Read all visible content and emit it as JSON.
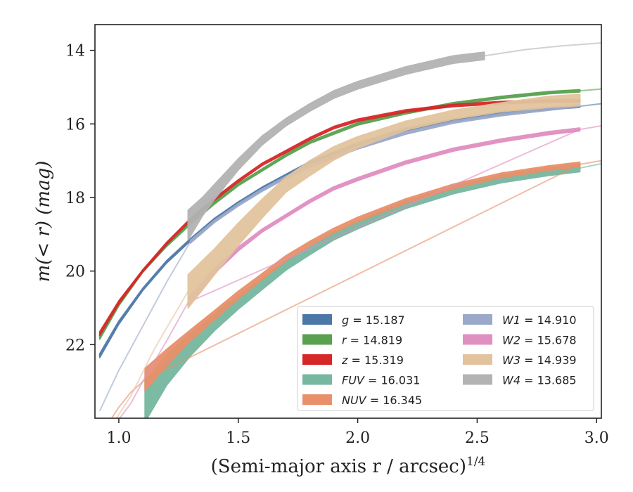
{
  "chart_data": {
    "type": "line",
    "xlabel": "(Semi-major axis r / arcsec)",
    "xlabel_exponent": "1/4",
    "ylabel": "m(< r) (mag)",
    "xlim": [
      0.9,
      3.02
    ],
    "ylim": [
      24.0,
      13.3
    ],
    "y_inverted": true,
    "grid": false,
    "legend_position": "lower-right",
    "x_ticks": [
      1.0,
      1.5,
      2.0,
      2.5,
      3.0
    ],
    "x_tick_labels": [
      "1.0",
      "1.5",
      "2.0",
      "2.5",
      "3.0"
    ],
    "y_ticks": [
      14,
      16,
      18,
      20,
      22
    ],
    "y_tick_labels": [
      "14",
      "16",
      "18",
      "20",
      "22"
    ],
    "series": [
      {
        "name": "g = 15.187",
        "label_var": "g",
        "label_value": "15.187",
        "color": "#4c78a8",
        "x": [
          0.92,
          1.0,
          1.1,
          1.2,
          1.3,
          1.4,
          1.5,
          1.6,
          1.7,
          1.8,
          1.9,
          2.0,
          2.2,
          2.4,
          2.6,
          2.8,
          2.93
        ],
        "y": [
          22.3,
          21.4,
          20.5,
          19.75,
          19.15,
          18.6,
          18.15,
          17.75,
          17.4,
          17.05,
          16.8,
          16.55,
          16.15,
          15.9,
          15.7,
          15.58,
          15.52
        ],
        "err": [
          0.05,
          0.04,
          0.03,
          0.03,
          0.03,
          0.03,
          0.03,
          0.03,
          0.03,
          0.03,
          0.03,
          0.03,
          0.03,
          0.03,
          0.03,
          0.03,
          0.03
        ],
        "thin_x": [
          2.93,
          3.02
        ],
        "thin_y": [
          15.52,
          15.45
        ]
      },
      {
        "name": "r = 14.819",
        "label_var": "r",
        "label_value": "14.819",
        "color": "#59a14f",
        "x": [
          0.92,
          1.0,
          1.1,
          1.2,
          1.3,
          1.4,
          1.5,
          1.6,
          1.7,
          1.8,
          1.9,
          2.0,
          2.2,
          2.4,
          2.6,
          2.8,
          2.93
        ],
        "y": [
          21.8,
          20.9,
          20.0,
          19.3,
          18.7,
          18.15,
          17.65,
          17.25,
          16.85,
          16.5,
          16.25,
          16.0,
          15.7,
          15.45,
          15.28,
          15.15,
          15.1
        ],
        "err": [
          0.05,
          0.04,
          0.03,
          0.03,
          0.03,
          0.03,
          0.03,
          0.03,
          0.03,
          0.03,
          0.03,
          0.03,
          0.03,
          0.03,
          0.03,
          0.03,
          0.03
        ],
        "thin_x": [
          2.93,
          3.02
        ],
        "thin_y": [
          15.1,
          15.05
        ]
      },
      {
        "name": "z = 15.319",
        "label_var": "z",
        "label_value": "15.319",
        "color": "#d62728",
        "x": [
          0.92,
          1.0,
          1.1,
          1.2,
          1.3,
          1.4,
          1.5,
          1.6,
          1.7,
          1.8,
          1.9,
          2.0,
          2.2,
          2.4,
          2.6,
          2.8,
          2.93
        ],
        "y": [
          21.7,
          20.85,
          20.0,
          19.25,
          18.6,
          18.05,
          17.55,
          17.1,
          16.75,
          16.4,
          16.1,
          15.9,
          15.65,
          15.5,
          15.42,
          15.38,
          15.37
        ],
        "err": [
          0.05,
          0.04,
          0.03,
          0.03,
          0.03,
          0.03,
          0.03,
          0.03,
          0.03,
          0.03,
          0.03,
          0.03,
          0.03,
          0.03,
          0.03,
          0.03,
          0.03
        ],
        "thin_x": [],
        "thin_y": []
      },
      {
        "name": "FUV = 16.031",
        "label_var": "FUV",
        "label_value": "16.031",
        "color": "#76b7a0",
        "x": [
          1.11,
          1.2,
          1.3,
          1.4,
          1.5,
          1.6,
          1.7,
          1.8,
          1.9,
          2.0,
          2.2,
          2.4,
          2.6,
          2.8,
          2.93
        ],
        "y": [
          23.55,
          22.7,
          22.0,
          21.4,
          20.85,
          20.35,
          19.85,
          19.45,
          19.05,
          18.75,
          18.2,
          17.8,
          17.5,
          17.3,
          17.2
        ],
        "err": [
          0.55,
          0.4,
          0.3,
          0.22,
          0.18,
          0.15,
          0.12,
          0.1,
          0.1,
          0.1,
          0.1,
          0.1,
          0.1,
          0.1,
          0.1
        ],
        "thin_x": [
          2.93,
          3.02
        ],
        "thin_y": [
          17.2,
          17.08
        ]
      },
      {
        "name": "NUV = 16.345",
        "label_var": "NUV",
        "label_value": "16.345",
        "color": "#e8906a",
        "x": [
          1.11,
          1.2,
          1.3,
          1.4,
          1.5,
          1.6,
          1.7,
          1.8,
          1.9,
          2.0,
          2.2,
          2.4,
          2.6,
          2.8,
          2.93
        ],
        "y": [
          22.95,
          22.35,
          21.75,
          21.2,
          20.65,
          20.15,
          19.65,
          19.25,
          18.9,
          18.6,
          18.1,
          17.7,
          17.4,
          17.2,
          17.1
        ],
        "err": [
          0.3,
          0.22,
          0.15,
          0.12,
          0.1,
          0.08,
          0.07,
          0.06,
          0.06,
          0.06,
          0.06,
          0.06,
          0.06,
          0.06,
          0.06
        ],
        "thin_x": [
          0.95,
          1.0,
          1.05,
          1.11,
          1.11,
          2.93,
          3.02
        ],
        "thin_y": [
          24.2,
          23.7,
          23.3,
          22.95,
          22.95,
          17.1,
          17.0
        ]
      },
      {
        "name": "W1 = 14.910",
        "label_var": "W1",
        "label_value": "14.910",
        "color": "#9aa9c8",
        "x": [
          1.3,
          1.4,
          1.5,
          1.6,
          1.7,
          1.8,
          1.9,
          2.0,
          2.2,
          2.4,
          2.6,
          2.8,
          2.93
        ],
        "y": [
          19.2,
          18.65,
          18.2,
          17.8,
          17.45,
          17.15,
          16.9,
          16.65,
          16.25,
          15.95,
          15.75,
          15.6,
          15.5
        ],
        "err": [
          0.04,
          0.03,
          0.03,
          0.03,
          0.03,
          0.03,
          0.03,
          0.03,
          0.03,
          0.03,
          0.03,
          0.03,
          0.03
        ],
        "thin_x": [
          0.92,
          1.0,
          1.1,
          1.2,
          1.3
        ],
        "thin_y": [
          23.8,
          22.7,
          21.5,
          20.3,
          19.2
        ]
      },
      {
        "name": "W2 = 15.678",
        "label_var": "W2",
        "label_value": "15.678",
        "color": "#e08fc1",
        "x": [
          1.29,
          1.4,
          1.5,
          1.6,
          1.7,
          1.8,
          1.9,
          2.0,
          2.2,
          2.4,
          2.6,
          2.8,
          2.93
        ],
        "y": [
          20.85,
          20.0,
          19.4,
          18.9,
          18.5,
          18.1,
          17.75,
          17.5,
          17.05,
          16.7,
          16.45,
          16.25,
          16.15
        ],
        "err": [
          0.12,
          0.07,
          0.05,
          0.04,
          0.04,
          0.04,
          0.04,
          0.04,
          0.04,
          0.04,
          0.04,
          0.04,
          0.04
        ],
        "thin_x": [
          0.98,
          1.05,
          1.1,
          1.2,
          1.29,
          1.29,
          2.93,
          3.02
        ],
        "thin_y": [
          24.2,
          23.6,
          23.0,
          21.9,
          20.85,
          20.85,
          16.15,
          16.05
        ]
      },
      {
        "name": "W3 = 14.939",
        "label_var": "W3",
        "label_value": "14.939",
        "color": "#e2c39e",
        "x": [
          1.29,
          1.4,
          1.5,
          1.6,
          1.7,
          1.8,
          1.9,
          2.0,
          2.2,
          2.4,
          2.6,
          2.8,
          2.93
        ],
        "y": [
          20.55,
          19.75,
          19.0,
          18.3,
          17.65,
          17.2,
          16.8,
          16.5,
          16.05,
          15.75,
          15.55,
          15.4,
          15.35
        ],
        "err": [
          0.45,
          0.35,
          0.3,
          0.25,
          0.2,
          0.2,
          0.18,
          0.15,
          0.12,
          0.12,
          0.12,
          0.15,
          0.15
        ],
        "thin_x": [
          0.97,
          1.05,
          1.15,
          1.29
        ],
        "thin_y": [
          24.2,
          23.4,
          22.1,
          20.55
        ]
      },
      {
        "name": "W4 = 13.685",
        "label_var": "W4",
        "label_value": "13.685",
        "color": "#b3b3b3",
        "x": [
          1.29,
          1.35,
          1.4,
          1.5,
          1.6,
          1.7,
          1.8,
          1.9,
          2.0,
          2.1,
          2.2,
          2.3,
          2.4,
          2.53
        ],
        "y": [
          18.75,
          18.25,
          17.85,
          17.1,
          16.45,
          15.95,
          15.55,
          15.2,
          14.95,
          14.75,
          14.55,
          14.4,
          14.25,
          14.15
        ],
        "err": [
          0.4,
          0.25,
          0.2,
          0.15,
          0.12,
          0.1,
          0.1,
          0.1,
          0.1,
          0.1,
          0.1,
          0.1,
          0.1,
          0.1
        ],
        "thin_x": [
          2.53,
          2.7,
          2.85,
          3.02
        ],
        "thin_y": [
          14.15,
          13.98,
          13.88,
          13.8
        ]
      }
    ]
  }
}
